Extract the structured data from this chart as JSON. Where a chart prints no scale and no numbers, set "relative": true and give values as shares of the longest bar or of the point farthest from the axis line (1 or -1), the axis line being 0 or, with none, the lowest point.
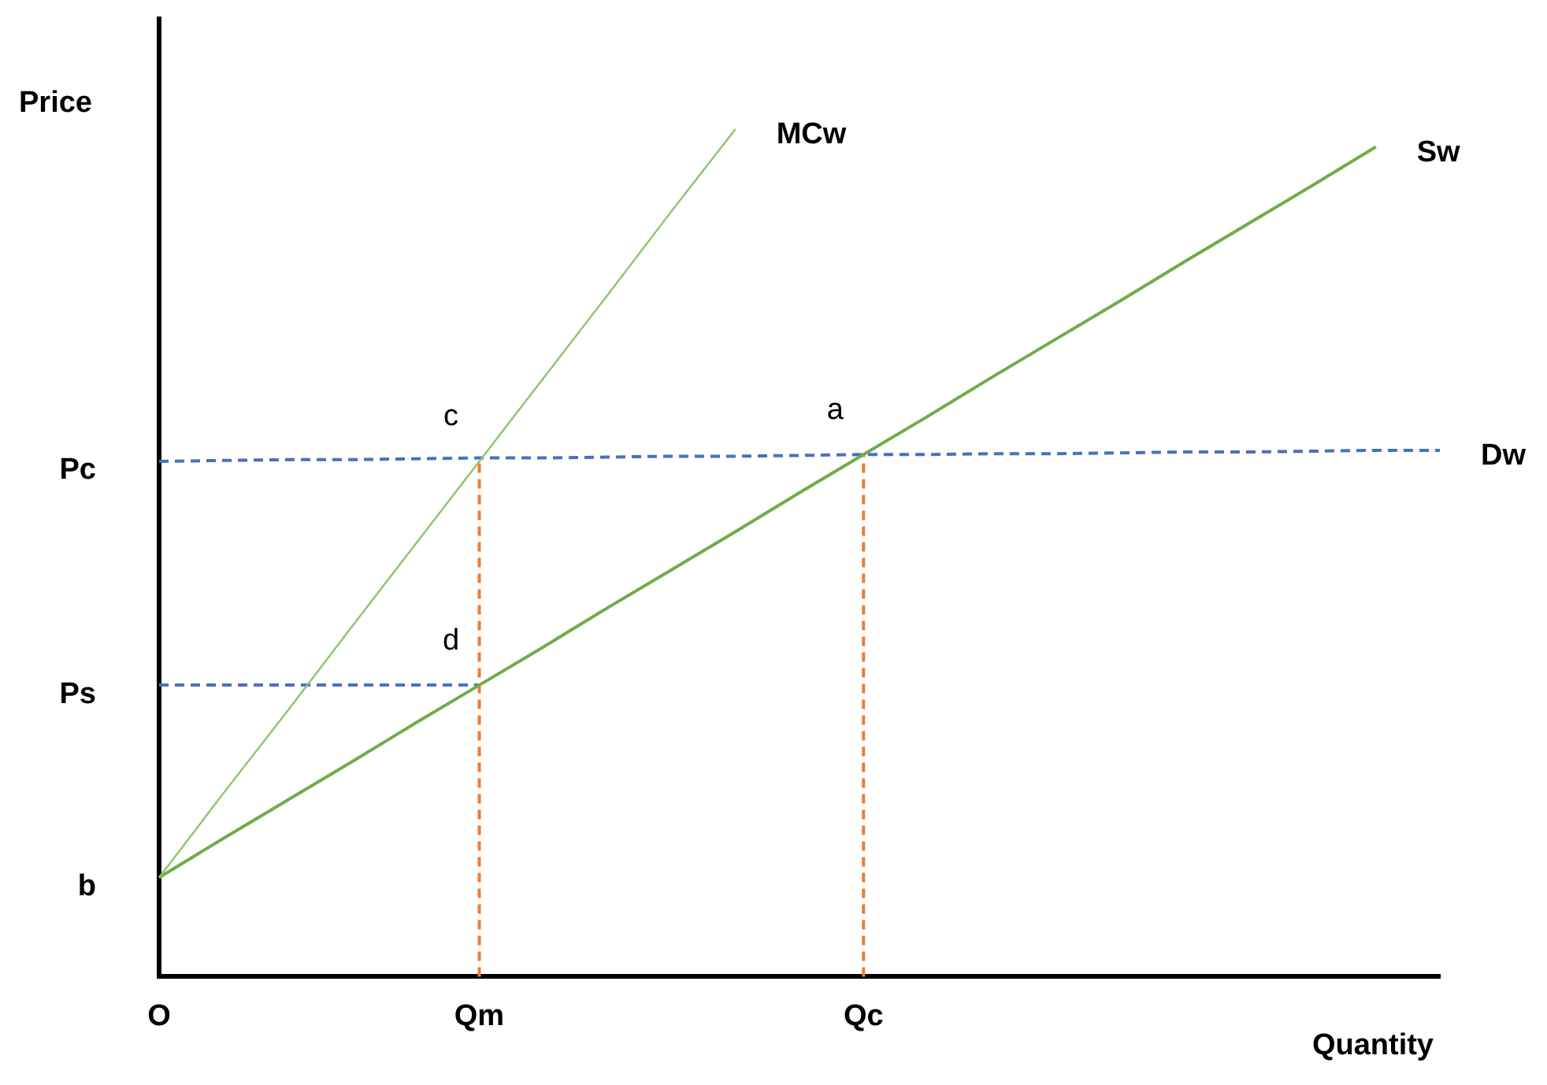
{
  "chart_data": {
    "type": "line",
    "relative": true,
    "ylabel": "Price",
    "xlabel": "Quantity",
    "categories": [
      "O",
      null,
      null,
      null,
      null,
      "Qm",
      null,
      null,
      null,
      null,
      null,
      "Qc",
      null,
      null,
      null,
      null,
      null,
      null,
      null,
      null,
      null
    ],
    "tick_labels": "x",
    "grid": false,
    "legend": false,
    "marker": "none",
    "series": [
      {
        "name": "MCw",
        "color": "#8cc56a",
        "line_style": "solid",
        "values": [
          0.117,
          0.216,
          0.313,
          0.412,
          0.51,
          0.608,
          0.706,
          0.804,
          0.903,
          1,
          null,
          null,
          null,
          null,
          null,
          null,
          null,
          null,
          null,
          null,
          null
        ]
      },
      {
        "name": "Sw",
        "color": "#70ad47",
        "line_style": "solid",
        "values": [
          0.117,
          0.163,
          0.208,
          0.253,
          0.299,
          0.344,
          0.389,
          0.435,
          0.48,
          0.525,
          0.571,
          0.616,
          0.661,
          0.707,
          0.752,
          0.797,
          0.843,
          0.888,
          0.933,
          0.979,
          null
        ]
      },
      {
        "name": "Dw",
        "color": "#4472c4",
        "line_style": "dashed",
        "values": [
          0.608,
          0.609,
          0.61,
          0.61,
          0.611,
          0.612,
          0.612,
          0.613,
          0.614,
          0.614,
          0.615,
          0.616,
          0.616,
          0.617,
          0.617,
          0.618,
          0.619,
          0.619,
          0.62,
          0.621,
          0.621
        ]
      }
    ],
    "ref_lines": [
      {
        "axis": "y",
        "value": 0.344,
        "label": "Ps",
        "color": "#4472c4",
        "line_style": "dashed"
      },
      {
        "axis": "x",
        "value": "Qm",
        "color": "#ed7d31",
        "line_style": "dashed"
      },
      {
        "axis": "x",
        "value": "Qc",
        "color": "#ed7d31",
        "line_style": "dashed"
      }
    ],
    "annotations": [
      {
        "text": "Pc",
        "x": "O",
        "y": 0.608
      },
      {
        "text": "b",
        "x": "O",
        "y": 0.117
      },
      {
        "text": "c",
        "x": "Qm",
        "y": 0.608
      },
      {
        "text": "a",
        "x": "Qc",
        "y": 0.616
      },
      {
        "text": "d",
        "x": "Qm",
        "y": 0.344
      }
    ]
  }
}
